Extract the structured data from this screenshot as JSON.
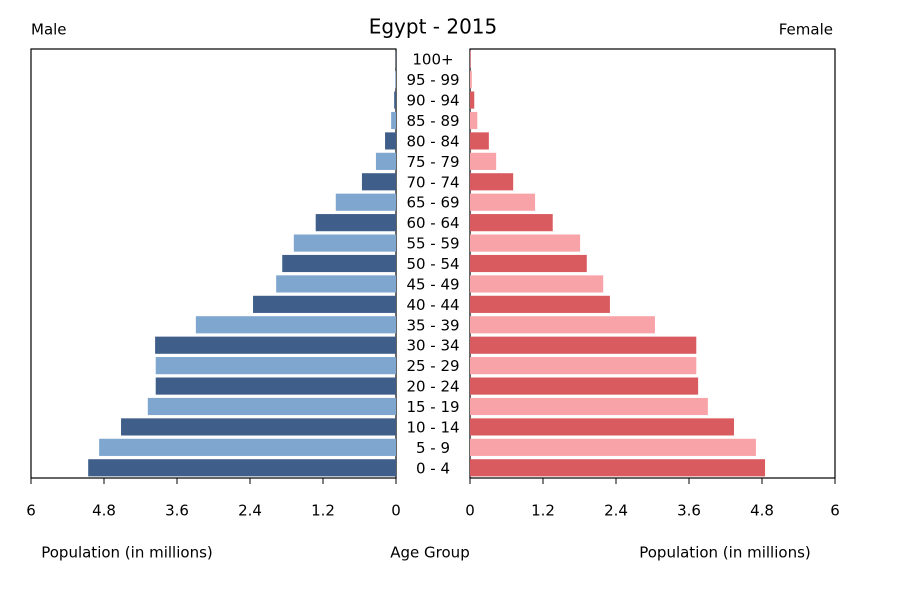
{
  "chart_data": {
    "type": "pyramid",
    "title": "Egypt - 2015",
    "center_label": "Age Group",
    "xlabel": "Population (in millions)",
    "categories": [
      "0 - 4",
      "5 - 9",
      "10 - 14",
      "15 - 19",
      "20 - 24",
      "25 - 29",
      "30 - 34",
      "35 - 39",
      "40 - 44",
      "45 - 49",
      "50 - 54",
      "55 - 59",
      "60 - 64",
      "65 - 69",
      "70 - 74",
      "75 - 79",
      "80 - 84",
      "85 - 89",
      "90 - 94",
      "95 - 99",
      "100+"
    ],
    "series": [
      {
        "name": "Male",
        "side": "left",
        "colors": [
          "#3f5f8a",
          "#7fa6cf"
        ],
        "values": [
          5.06,
          4.88,
          4.52,
          4.08,
          3.95,
          3.95,
          3.96,
          3.29,
          2.35,
          1.97,
          1.87,
          1.68,
          1.32,
          0.99,
          0.56,
          0.33,
          0.18,
          0.08,
          0.03,
          0.01,
          0.005
        ]
      },
      {
        "name": "Female",
        "side": "right",
        "colors": [
          "#d95b5f",
          "#f7a3a8"
        ],
        "values": [
          4.85,
          4.7,
          4.34,
          3.91,
          3.75,
          3.72,
          3.72,
          3.04,
          2.3,
          2.19,
          1.92,
          1.81,
          1.36,
          1.07,
          0.71,
          0.43,
          0.31,
          0.12,
          0.07,
          0.03,
          0.01
        ]
      }
    ],
    "xlim": [
      0,
      6
    ],
    "xticks": [
      0,
      1.2,
      2.4,
      3.6,
      4.8,
      6
    ]
  }
}
